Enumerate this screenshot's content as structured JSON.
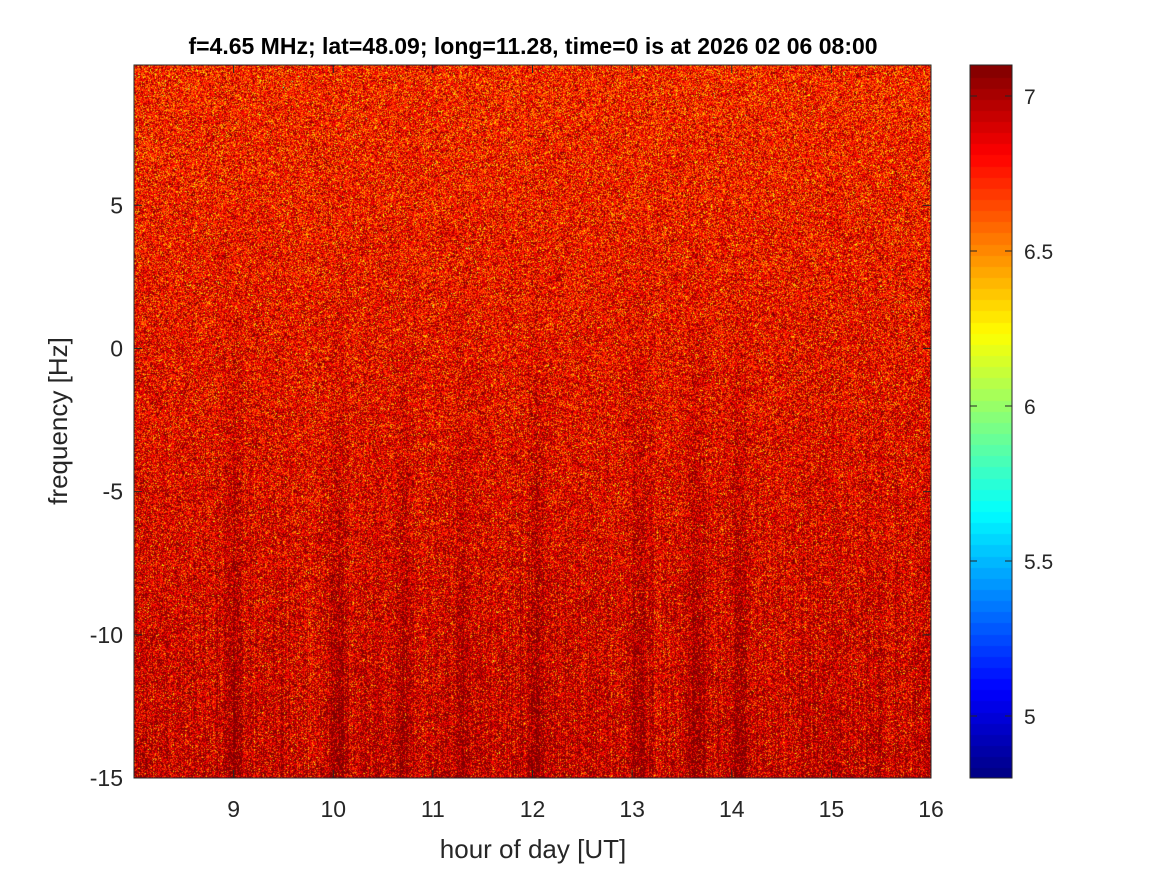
{
  "chart_data": {
    "type": "heatmap",
    "title": "f=4.65 MHz;  lat=48.09; long=11.28, time=0 is at 2026 02 06 08:00",
    "xlabel": "hour of day [UT]",
    "ylabel": "frequency [Hz]",
    "xlim": [
      8,
      16
    ],
    "ylim": [
      -15,
      9.9
    ],
    "x_ticks": [
      9,
      10,
      11,
      12,
      13,
      14,
      15,
      16
    ],
    "x_tick_labels": [
      "9",
      "10",
      "11",
      "12",
      "13",
      "14",
      "15",
      "16"
    ],
    "y_ticks": [
      -15,
      -10,
      -5,
      0,
      5
    ],
    "y_tick_labels": [
      "-15",
      "-10",
      "-5",
      "0",
      "5"
    ],
    "colorbar": {
      "colormap": "jet",
      "clim": [
        4.8,
        7.1
      ],
      "ticks": [
        5,
        5.5,
        6,
        6.5,
        7
      ],
      "tick_labels": [
        "5",
        "5.5",
        "6",
        "6.5",
        "7"
      ]
    },
    "grid": false,
    "field": {
      "base_value_top": 6.75,
      "base_value_bottom": 6.95,
      "noise_std": 0.22,
      "dark_vertical_streaks_hour": [
        9.0,
        10.05,
        10.7,
        11.3,
        12.05,
        13.1,
        13.65,
        14.05
      ]
    }
  },
  "colors": {
    "background": "#ffffff",
    "axes": "#262626",
    "title": "#000000"
  }
}
